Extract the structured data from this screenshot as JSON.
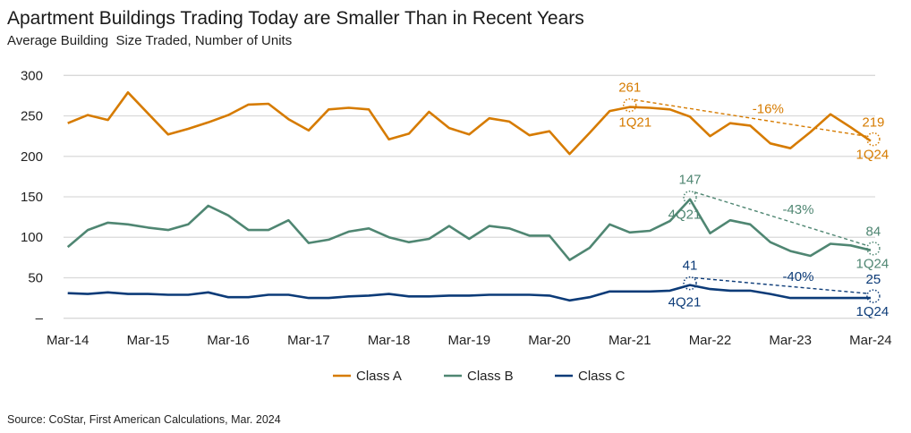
{
  "chart_data": {
    "type": "line",
    "title": "Apartment Buildings Trading Today are Smaller Than in Recent Years",
    "subtitle": "Average Building  Size Traded, Number of Units",
    "source": "Source: CoStar, First American Calculations, Mar. 2024",
    "xlabel": "",
    "ylabel": "",
    "ylim": [
      0,
      300
    ],
    "yticks": [
      0,
      50,
      100,
      150,
      200,
      250,
      300
    ],
    "ytick_labels": [
      "–",
      "50",
      "100",
      "150",
      "200",
      "250",
      "300"
    ],
    "x_start": "Mar-14",
    "x_frequency": "quarterly",
    "xtick_labels": [
      "Mar-14",
      "Mar-15",
      "Mar-16",
      "Mar-17",
      "Mar-18",
      "Mar-19",
      "Mar-20",
      "Mar-21",
      "Mar-22",
      "Mar-23",
      "Mar-24"
    ],
    "grid": true,
    "legend_position": "bottom",
    "series": [
      {
        "name": "Class A",
        "color": "#D67B00",
        "values": [
          241,
          251,
          245,
          279,
          253,
          227,
          234,
          242,
          251,
          264,
          265,
          246,
          232,
          258,
          260,
          258,
          221,
          228,
          255,
          235,
          227,
          247,
          243,
          226,
          231,
          203,
          229,
          256,
          261,
          260,
          258,
          249,
          225,
          241,
          238,
          216,
          210,
          230,
          252,
          236,
          219
        ]
      },
      {
        "name": "Class B",
        "color": "#4F8672",
        "values": [
          88,
          109,
          118,
          116,
          112,
          109,
          116,
          139,
          127,
          109,
          109,
          121,
          93,
          97,
          107,
          111,
          100,
          94,
          98,
          114,
          98,
          114,
          111,
          102,
          102,
          72,
          87,
          116,
          106,
          108,
          120,
          147,
          105,
          121,
          116,
          94,
          83,
          77,
          92,
          90,
          84
        ]
      },
      {
        "name": "Class C",
        "color": "#0C3B78",
        "values": [
          31,
          30,
          32,
          30,
          30,
          29,
          29,
          32,
          26,
          26,
          29,
          29,
          25,
          25,
          27,
          28,
          30,
          27,
          27,
          28,
          28,
          29,
          29,
          29,
          28,
          22,
          26,
          33,
          33,
          33,
          34,
          41,
          36,
          34,
          34,
          30,
          25,
          25,
          25,
          25,
          25
        ]
      }
    ],
    "annotations": [
      {
        "series": 0,
        "from_index": 28,
        "to_index": 40,
        "from_value": "261",
        "from_period": "1Q21",
        "to_value": "219",
        "to_period": "1Q24",
        "change": "-16%"
      },
      {
        "series": 1,
        "from_index": 31,
        "to_index": 40,
        "from_value": "147",
        "from_period": "4Q21",
        "to_value": "84",
        "to_period": "1Q24",
        "change": "-43%"
      },
      {
        "series": 2,
        "from_index": 31,
        "to_index": 40,
        "from_value": "41",
        "from_period": "4Q21",
        "to_value": "25",
        "to_period": "1Q24",
        "change": "-40%"
      }
    ]
  }
}
